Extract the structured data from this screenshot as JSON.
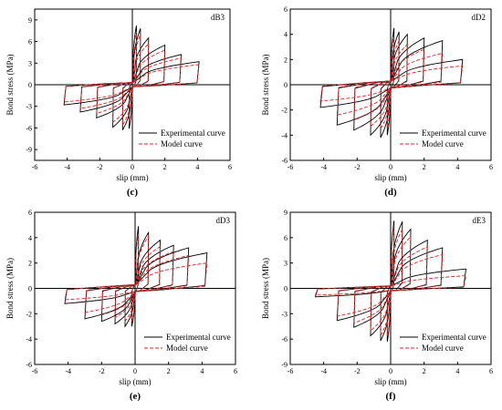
{
  "chart_data": [
    {
      "type": "line",
      "plot_label": "dB3",
      "caption": "(c)",
      "xlabel": "slip (mm)",
      "ylabel": "Bond stress (MPa)",
      "xlim": [
        -6,
        6
      ],
      "ylim": [
        -10.5,
        10.5
      ],
      "xticks": [
        -6,
        -4,
        -2,
        0,
        2,
        4,
        6
      ],
      "yticks": [
        -9,
        -6,
        -3,
        0,
        3,
        6,
        9
      ],
      "legend_position": "bottom-right",
      "series": [
        {
          "name": "Experimental curve",
          "style": "solid",
          "color": "#000000",
          "loops": [
            [
              0.25,
              8.2,
              -0.2,
              -6.1
            ],
            [
              0.5,
              7.8,
              -0.6,
              -6.3
            ],
            [
              1.0,
              6.5,
              -1.2,
              -5.9
            ],
            [
              2.0,
              5.5,
              -2.2,
              -4.6
            ],
            [
              3.0,
              4.2,
              -3.2,
              -3.8
            ],
            [
              4.1,
              3.2,
              -4.2,
              -2.8
            ]
          ]
        },
        {
          "name": "Model curve",
          "style": "dashed",
          "color": "#d62728",
          "loops": [
            [
              0.25,
              7.4,
              -0.2,
              -5.5
            ],
            [
              0.5,
              7.0,
              -0.6,
              -5.6
            ],
            [
              1.0,
              5.7,
              -1.2,
              -5.2
            ],
            [
              2.0,
              4.8,
              -2.2,
              -4.0
            ],
            [
              3.0,
              3.7,
              -3.2,
              -3.3
            ],
            [
              4.1,
              2.8,
              -4.2,
              -2.4
            ]
          ]
        }
      ]
    },
    {
      "type": "line",
      "plot_label": "dD2",
      "caption": "(d)",
      "xlabel": "slip (mm)",
      "ylabel": "Bond stress (MPa)",
      "xlim": [
        -6,
        6
      ],
      "ylim": [
        -6,
        6
      ],
      "xticks": [
        -6,
        -4,
        -2,
        0,
        2,
        4,
        6
      ],
      "yticks": [
        -6,
        -4,
        -2,
        0,
        2,
        4,
        6
      ],
      "legend_position": "bottom-right",
      "series": [
        {
          "name": "Experimental curve",
          "style": "solid",
          "color": "#000000",
          "loops": [
            [
              0.2,
              4.5,
              -0.2,
              -4.0
            ],
            [
              0.5,
              4.2,
              -0.6,
              -4.2
            ],
            [
              1.0,
              4.0,
              -1.2,
              -4.0
            ],
            [
              2.0,
              3.7,
              -2.2,
              -3.6
            ],
            [
              3.1,
              3.5,
              -3.2,
              -3.2
            ],
            [
              4.3,
              2.0,
              -4.2,
              -1.8
            ]
          ]
        },
        {
          "name": "Model curve",
          "style": "dashed",
          "color": "#d62728",
          "loops": [
            [
              0.2,
              3.8,
              -0.2,
              -3.4
            ],
            [
              0.5,
              3.5,
              -0.6,
              -3.5
            ],
            [
              1.0,
              3.2,
              -1.2,
              -3.3
            ],
            [
              2.0,
              2.8,
              -2.2,
              -2.8
            ],
            [
              3.1,
              2.5,
              -3.2,
              -2.4
            ],
            [
              4.3,
              1.5,
              -4.2,
              -1.3
            ]
          ]
        }
      ]
    },
    {
      "type": "line",
      "plot_label": "dD3",
      "caption": "(e)",
      "xlabel": "slip (mm)",
      "ylabel": "Bond stress (MPa)",
      "xlim": [
        -6,
        6
      ],
      "ylim": [
        -6,
        6
      ],
      "xticks": [
        -6,
        -4,
        -2,
        0,
        2,
        4,
        6
      ],
      "yticks": [
        -6,
        -4,
        -2,
        0,
        2,
        4,
        6
      ],
      "legend_position": "bottom-right",
      "series": [
        {
          "name": "Experimental curve",
          "style": "solid",
          "color": "#000000",
          "loops": [
            [
              0.2,
              4.9,
              -0.2,
              -3.0
            ],
            [
              0.8,
              4.4,
              -0.6,
              -3.0
            ],
            [
              1.5,
              3.8,
              -1.2,
              -2.8
            ],
            [
              2.3,
              3.4,
              -2.0,
              -2.6
            ],
            [
              3.2,
              3.2,
              -3.0,
              -2.4
            ],
            [
              4.3,
              2.8,
              -4.2,
              -1.2
            ]
          ]
        },
        {
          "name": "Model curve",
          "style": "dashed",
          "color": "#d62728",
          "loops": [
            [
              0.2,
              4.3,
              -0.2,
              -2.6
            ],
            [
              0.8,
              4.1,
              -0.6,
              -2.6
            ],
            [
              1.5,
              3.3,
              -1.2,
              -2.3
            ],
            [
              2.3,
              2.9,
              -2.0,
              -2.1
            ],
            [
              3.2,
              2.6,
              -3.0,
              -1.9
            ],
            [
              4.3,
              2.0,
              -4.2,
              -0.9
            ]
          ]
        }
      ]
    },
    {
      "type": "line",
      "plot_label": "dE3",
      "caption": "(f)",
      "xlabel": "slip (mm)",
      "ylabel": "Bond stress (MPa)",
      "xlim": [
        -6,
        6
      ],
      "ylim": [
        -9,
        9
      ],
      "xticks": [
        -6,
        -4,
        -2,
        0,
        2,
        4,
        6
      ],
      "yticks": [
        -9,
        -6,
        -3,
        0,
        3,
        6,
        9
      ],
      "legend_position": "bottom-right",
      "series": [
        {
          "name": "Experimental curve",
          "style": "solid",
          "color": "#000000",
          "loops": [
            [
              0.2,
              8.0,
              -0.2,
              -6.3
            ],
            [
              0.7,
              7.9,
              -0.6,
              -6.2
            ],
            [
              1.2,
              7.0,
              -1.2,
              -5.6
            ],
            [
              2.2,
              5.7,
              -2.2,
              -4.6
            ],
            [
              3.1,
              4.8,
              -3.2,
              -3.8
            ],
            [
              4.5,
              2.3,
              -4.5,
              -1.0
            ]
          ]
        },
        {
          "name": "Model curve",
          "style": "dashed",
          "color": "#d62728",
          "loops": [
            [
              0.2,
              7.5,
              -0.2,
              -5.7
            ],
            [
              0.7,
              7.0,
              -0.6,
              -5.6
            ],
            [
              1.2,
              6.1,
              -1.2,
              -5.0
            ],
            [
              2.2,
              4.9,
              -2.2,
              -4.1
            ],
            [
              3.1,
              4.0,
              -3.2,
              -3.3
            ],
            [
              4.5,
              1.5,
              -4.5,
              -0.8
            ]
          ]
        }
      ]
    }
  ]
}
